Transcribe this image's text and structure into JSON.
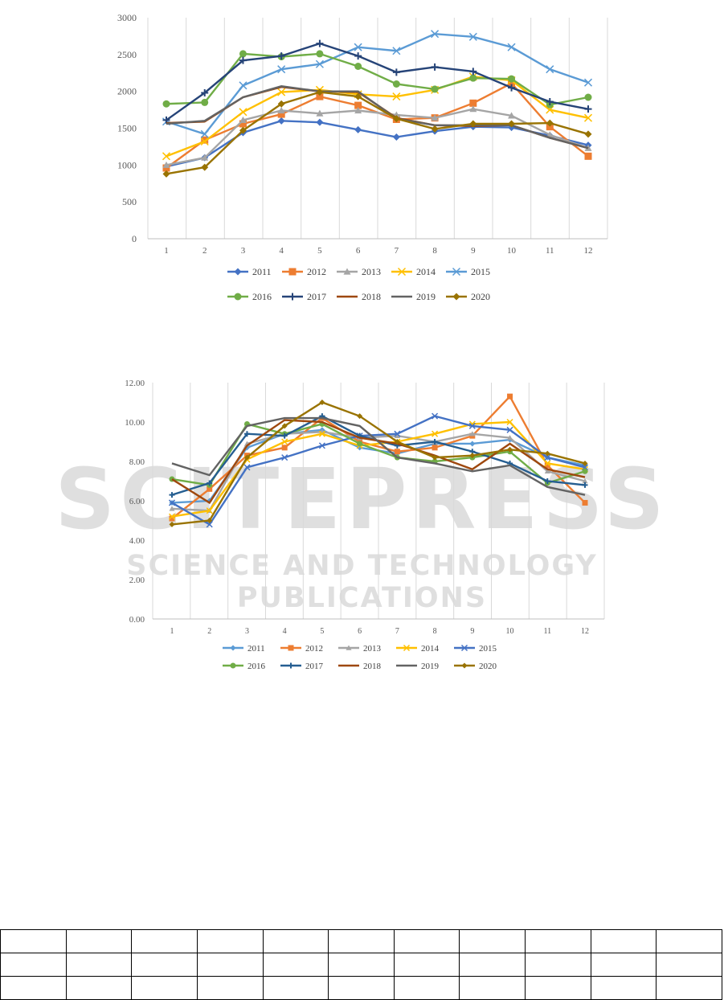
{
  "watermark": {
    "title": "SCITEPRESS",
    "subtitle": "SCIENCE AND TECHNOLOGY PUBLICATIONS"
  },
  "chart_data": [
    {
      "type": "line",
      "title": "",
      "xlabel": "",
      "ylabel": "",
      "x": [
        1,
        2,
        3,
        4,
        5,
        6,
        7,
        8,
        9,
        10,
        11,
        12
      ],
      "ylim": [
        0,
        3000
      ],
      "yticks": [
        "0",
        "500",
        "1000",
        "1500",
        "2000",
        "2500",
        "3000"
      ],
      "ytick_values": [
        0,
        500,
        1000,
        1500,
        2000,
        2500,
        3000
      ],
      "grid": "vertical",
      "legend": "bottom",
      "series": [
        {
          "name": "2011",
          "color": "#4472C4",
          "marker": "diamond",
          "values": [
            980,
            1100,
            1440,
            1600,
            1580,
            1480,
            1380,
            1460,
            1520,
            1510,
            1400,
            1270
          ]
        },
        {
          "name": "2012",
          "color": "#ED7D31",
          "marker": "square",
          "values": [
            960,
            1340,
            1560,
            1690,
            1930,
            1810,
            1620,
            1640,
            1840,
            2110,
            1520,
            1120
          ]
        },
        {
          "name": "2013",
          "color": "#A5A5A5",
          "marker": "triangle",
          "values": [
            1000,
            1100,
            1610,
            1740,
            1700,
            1740,
            1680,
            1640,
            1760,
            1670,
            1410,
            1230
          ]
        },
        {
          "name": "2014",
          "color": "#FFC000",
          "marker": "x",
          "values": [
            1120,
            1320,
            1720,
            1990,
            2020,
            1960,
            1930,
            2020,
            2200,
            2150,
            1750,
            1640
          ]
        },
        {
          "name": "2015",
          "color": "#5B9BD5",
          "marker": "x",
          "values": [
            1590,
            1420,
            2080,
            2300,
            2370,
            2600,
            2550,
            2780,
            2740,
            2600,
            2300,
            2120
          ]
        },
        {
          "name": "2016",
          "color": "#70AD47",
          "marker": "circle",
          "values": [
            1830,
            1850,
            2510,
            2470,
            2510,
            2340,
            2100,
            2030,
            2180,
            2170,
            1820,
            1920
          ]
        },
        {
          "name": "2017",
          "color": "#264478",
          "marker": "plus",
          "values": [
            1610,
            1980,
            2420,
            2480,
            2650,
            2480,
            2260,
            2330,
            2270,
            2050,
            1860,
            1760
          ]
        },
        {
          "name": "2018",
          "color": "#9E480E",
          "marker": "none",
          "values": [
            1570,
            1590,
            1920,
            2060,
            2000,
            1990,
            1640,
            1540,
            1530,
            1540,
            1370,
            1230
          ]
        },
        {
          "name": "2019",
          "color": "#636363",
          "marker": "none",
          "values": [
            1560,
            1600,
            1920,
            2070,
            2000,
            2000,
            1630,
            1540,
            1540,
            1540,
            1370,
            1230
          ]
        },
        {
          "name": "2020",
          "color": "#997300",
          "marker": "diamond",
          "values": [
            880,
            970,
            1470,
            1830,
            1990,
            1930,
            1630,
            1490,
            1560,
            1560,
            1570,
            1420
          ]
        }
      ]
    },
    {
      "type": "line",
      "title": "",
      "xlabel": "",
      "ylabel": "",
      "x": [
        1,
        2,
        3,
        4,
        5,
        6,
        7,
        8,
        9,
        10,
        11,
        12
      ],
      "ylim": [
        0,
        12
      ],
      "yticks": [
        "0.00",
        "2.00",
        "4.00",
        "6.00",
        "8.00",
        "10.00",
        "12.00"
      ],
      "ytick_values": [
        0,
        2,
        4,
        6,
        8,
        10,
        12
      ],
      "grid": "vertical",
      "legend": "bottom",
      "series": [
        {
          "name": "2011",
          "color": "#5B9BD5",
          "marker": "diamond",
          "values": [
            5.9,
            6.0,
            8.7,
            9.4,
            9.6,
            8.7,
            8.4,
            8.9,
            8.9,
            9.1,
            8.2,
            7.8
          ]
        },
        {
          "name": "2012",
          "color": "#ED7D31",
          "marker": "square",
          "values": [
            5.1,
            6.6,
            8.3,
            8.7,
            10.2,
            9.0,
            8.5,
            8.7,
            9.3,
            11.3,
            7.8,
            5.9
          ]
        },
        {
          "name": "2013",
          "color": "#A5A5A5",
          "marker": "triangle",
          "values": [
            5.6,
            5.5,
            8.9,
            9.4,
            9.5,
            9.2,
            9.3,
            9.0,
            9.4,
            9.2,
            7.5,
            7.0
          ]
        },
        {
          "name": "2014",
          "color": "#FFC000",
          "marker": "x",
          "values": [
            5.2,
            5.5,
            8.1,
            9.0,
            9.4,
            8.8,
            9.0,
            9.4,
            9.9,
            10.0,
            7.9,
            7.6
          ]
        },
        {
          "name": "2015",
          "color": "#4472C4",
          "marker": "x",
          "values": [
            5.9,
            4.8,
            7.7,
            8.2,
            8.8,
            9.3,
            9.4,
            10.3,
            9.8,
            9.6,
            8.2,
            7.7
          ]
        },
        {
          "name": "2016",
          "color": "#70AD47",
          "marker": "circle",
          "values": [
            7.1,
            6.8,
            9.9,
            9.4,
            9.9,
            8.9,
            8.2,
            8.0,
            8.2,
            8.5,
            6.9,
            7.5
          ]
        },
        {
          "name": "2017",
          "color": "#255E91",
          "marker": "plus",
          "values": [
            6.3,
            6.9,
            9.4,
            9.3,
            10.3,
            9.3,
            8.8,
            9.0,
            8.5,
            7.9,
            7.0,
            6.8
          ]
        },
        {
          "name": "2018",
          "color": "#9E480E",
          "marker": "none",
          "values": [
            7.1,
            5.9,
            8.8,
            10.1,
            10.0,
            9.2,
            8.9,
            8.3,
            7.6,
            8.9,
            7.6,
            7.2
          ]
        },
        {
          "name": "2019",
          "color": "#636363",
          "marker": "none",
          "values": [
            7.9,
            7.3,
            9.8,
            10.2,
            10.2,
            9.8,
            8.2,
            7.9,
            7.5,
            7.8,
            6.7,
            6.3
          ]
        },
        {
          "name": "2020",
          "color": "#997300",
          "marker": "diamond",
          "values": [
            4.8,
            5.0,
            8.2,
            9.8,
            11.0,
            10.3,
            9.0,
            8.2,
            8.3,
            8.6,
            8.4,
            7.9
          ]
        }
      ]
    }
  ],
  "table": {
    "rows": 3,
    "cols": 11
  }
}
